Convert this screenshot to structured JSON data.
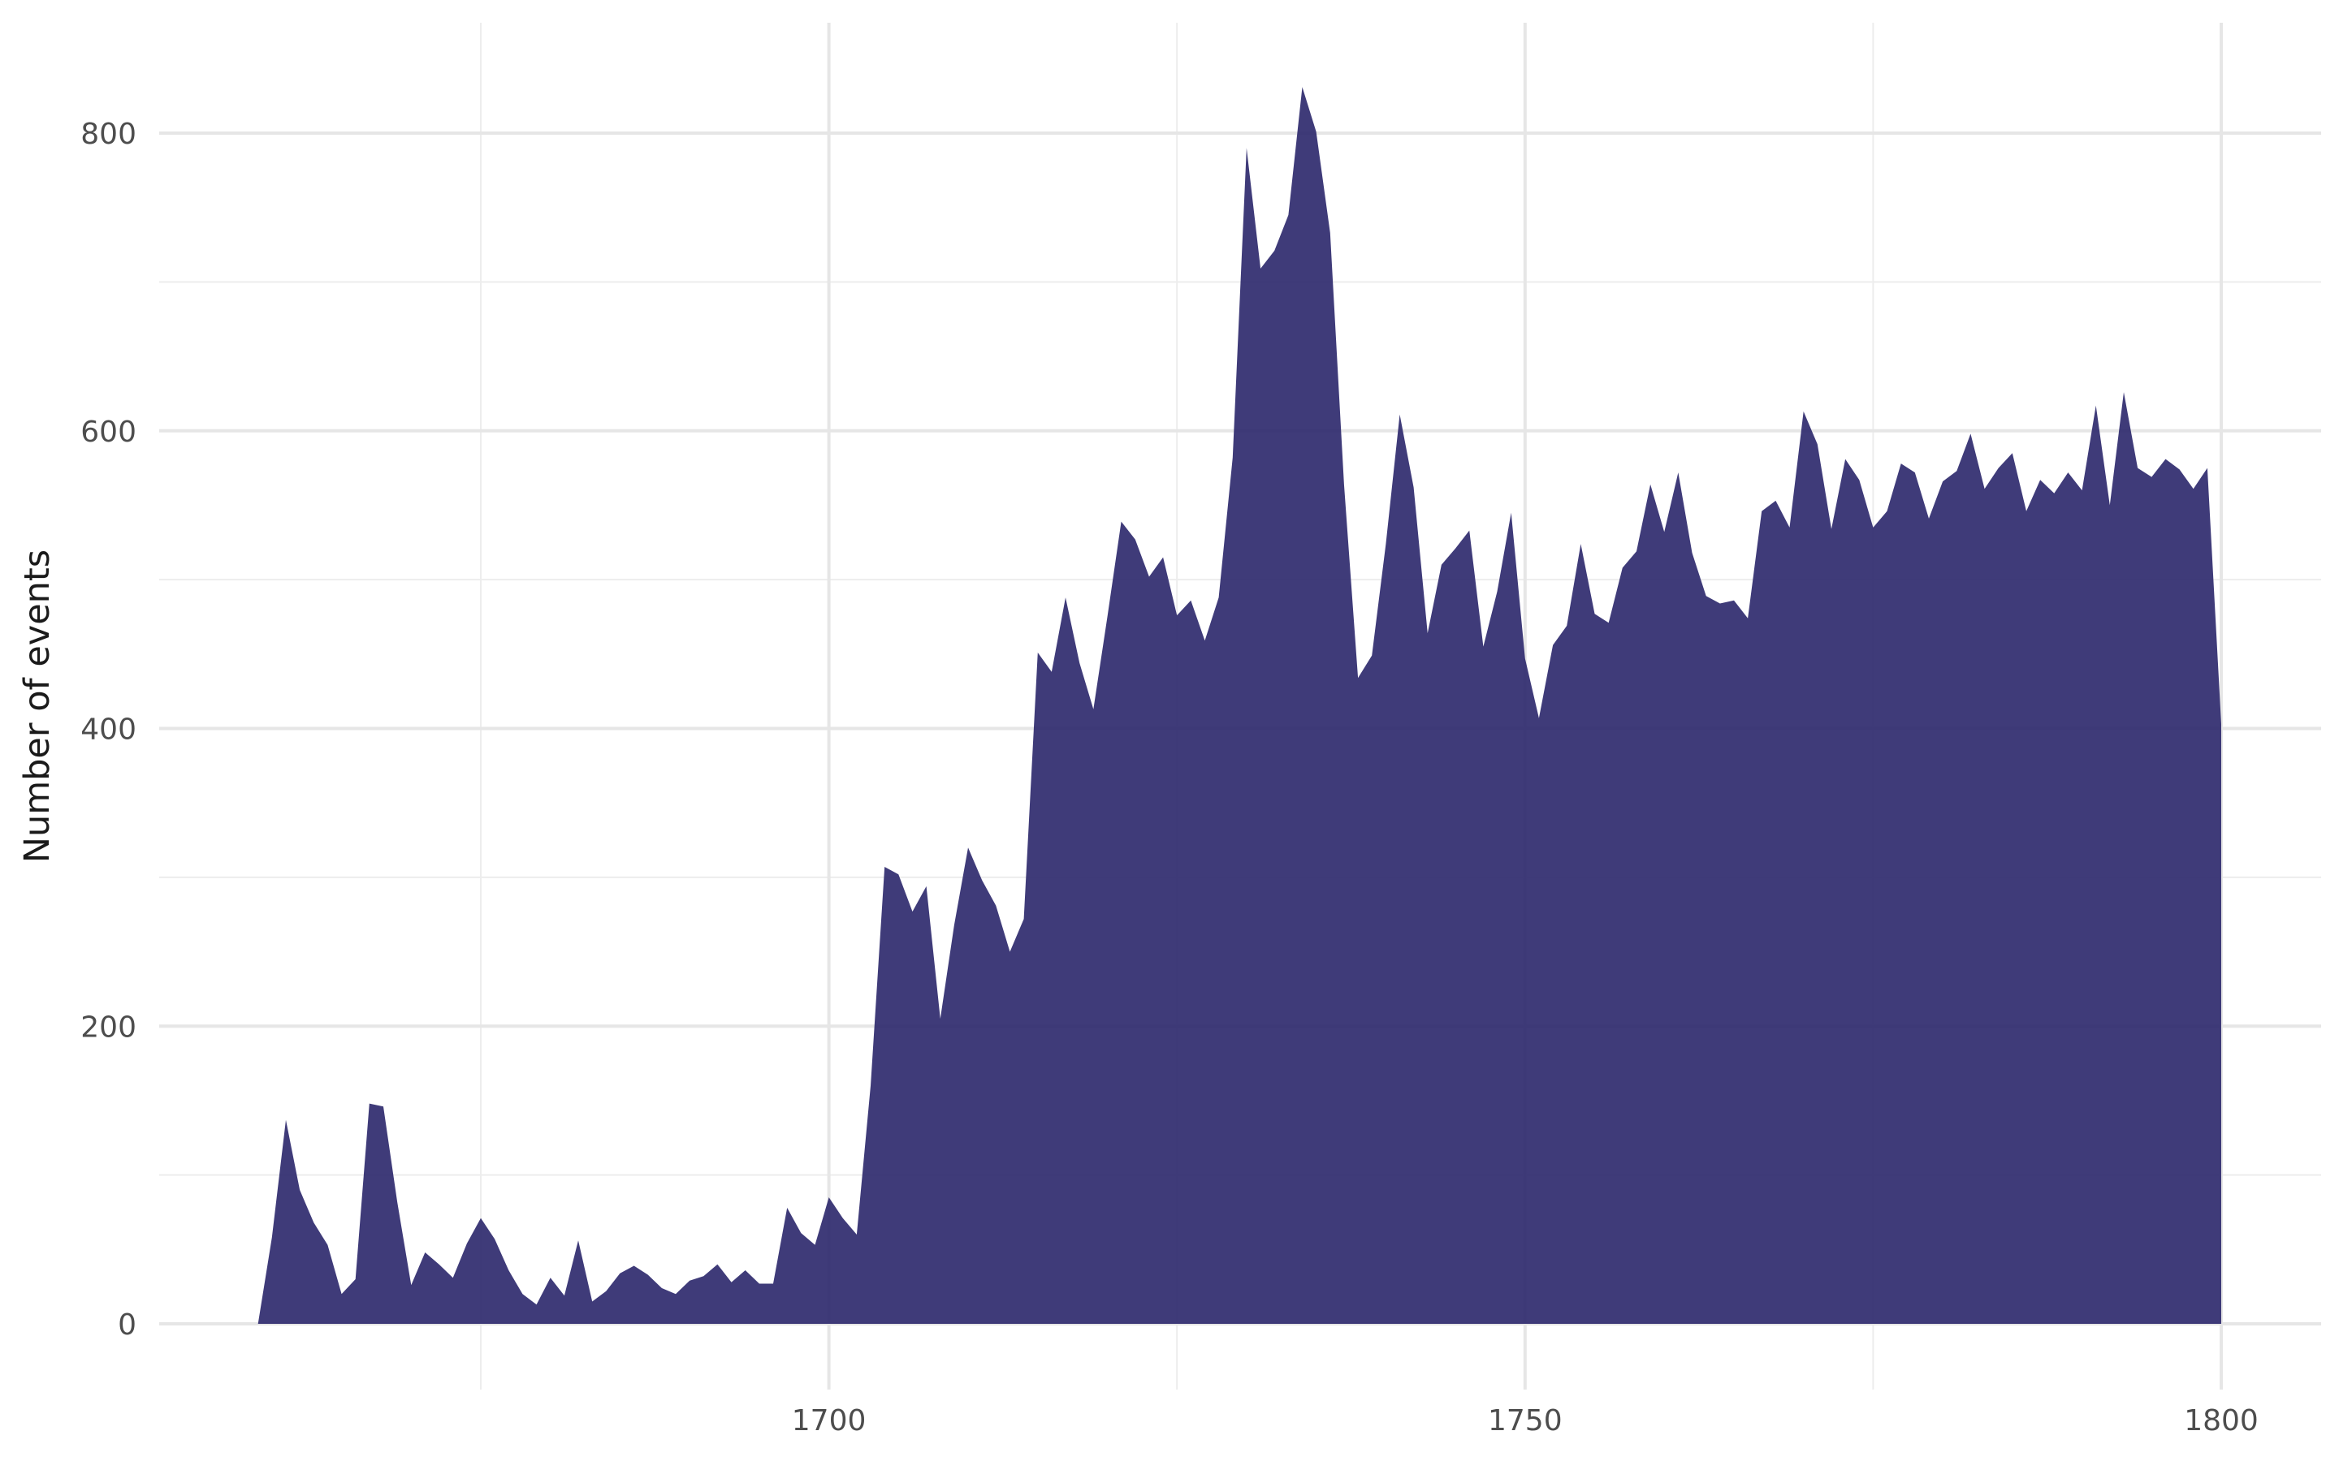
{
  "chart_data": {
    "type": "area",
    "title": "",
    "xlabel": "",
    "ylabel": "Number of events",
    "xlim": [
      1652,
      1807
    ],
    "ylim": [
      0,
      860
    ],
    "x_ticks": [
      1700,
      1750,
      1800
    ],
    "x_tick_labels": [
      "1700",
      "1750",
      "1800"
    ],
    "x_minor_ticks": [
      1675,
      1725,
      1775
    ],
    "y_ticks": [
      0,
      200,
      400,
      600,
      800
    ],
    "y_tick_labels": [
      "0",
      "200",
      "400",
      "600",
      "800"
    ],
    "y_minor_ticks": [
      100,
      300,
      500,
      700
    ],
    "grid": true,
    "legend": "none",
    "fill_color": "#2f2a6e",
    "series": [
      {
        "x": [
          1659,
          1660,
          1661,
          1662,
          1663,
          1664,
          1665,
          1666,
          1667,
          1668,
          1669,
          1670,
          1671,
          1672,
          1673,
          1674,
          1675,
          1676,
          1677,
          1678,
          1679,
          1680,
          1681,
          1682,
          1683,
          1684,
          1685,
          1686,
          1687,
          1688,
          1689,
          1690,
          1691,
          1692,
          1693,
          1694,
          1695,
          1696,
          1697,
          1698,
          1699,
          1700,
          1701,
          1702,
          1703,
          1704,
          1705,
          1706,
          1707,
          1708,
          1709,
          1710,
          1711,
          1712,
          1713,
          1714,
          1715,
          1716,
          1717,
          1718,
          1719,
          1720,
          1721,
          1722,
          1723,
          1724,
          1725,
          1726,
          1727,
          1728,
          1729,
          1730,
          1731,
          1732,
          1733,
          1734,
          1735,
          1736,
          1737,
          1738,
          1739,
          1740,
          1741,
          1742,
          1743,
          1744,
          1745,
          1746,
          1747,
          1748,
          1749,
          1750,
          1751,
          1752,
          1753,
          1754,
          1755,
          1756,
          1757,
          1758,
          1759,
          1760,
          1761,
          1762,
          1763,
          1764,
          1765,
          1766,
          1767,
          1768,
          1769,
          1770,
          1771,
          1772,
          1773,
          1774,
          1775,
          1776,
          1777,
          1778,
          1779,
          1780,
          1781,
          1782,
          1783,
          1784,
          1785,
          1786,
          1787,
          1788,
          1789,
          1790,
          1791,
          1792,
          1793,
          1794,
          1795,
          1796,
          1797,
          1798,
          1799,
          1800
        ],
        "values": [
          0,
          58,
          137,
          90,
          68,
          53,
          20,
          30,
          148,
          146,
          82,
          26,
          48,
          40,
          31,
          54,
          71,
          57,
          36,
          20,
          13,
          31,
          19,
          56,
          15,
          22,
          34,
          39,
          33,
          24,
          20,
          29,
          32,
          40,
          28,
          36,
          27,
          27,
          78,
          61,
          53,
          85,
          71,
          60,
          160,
          307,
          302,
          277,
          294,
          205,
          268,
          320,
          298,
          281,
          250,
          272,
          451,
          438,
          488,
          444,
          413,
          475,
          539,
          527,
          502,
          515,
          476,
          486,
          459,
          488,
          582,
          790,
          709,
          721,
          745,
          831,
          801,
          733,
          564,
          434,
          449,
          524,
          611,
          562,
          464,
          510,
          521,
          533,
          455,
          492,
          545,
          447,
          407,
          456,
          469,
          524,
          477,
          471,
          508,
          519,
          564,
          532,
          572,
          518,
          489,
          484,
          486,
          474,
          546,
          553,
          535,
          613,
          591,
          534,
          581,
          567,
          535,
          546,
          578,
          572,
          541,
          566,
          573,
          598,
          561,
          575,
          585,
          546,
          567,
          558,
          572,
          560,
          617,
          550,
          626,
          575,
          569,
          581,
          574,
          561,
          575,
          403
        ]
      }
    ]
  }
}
